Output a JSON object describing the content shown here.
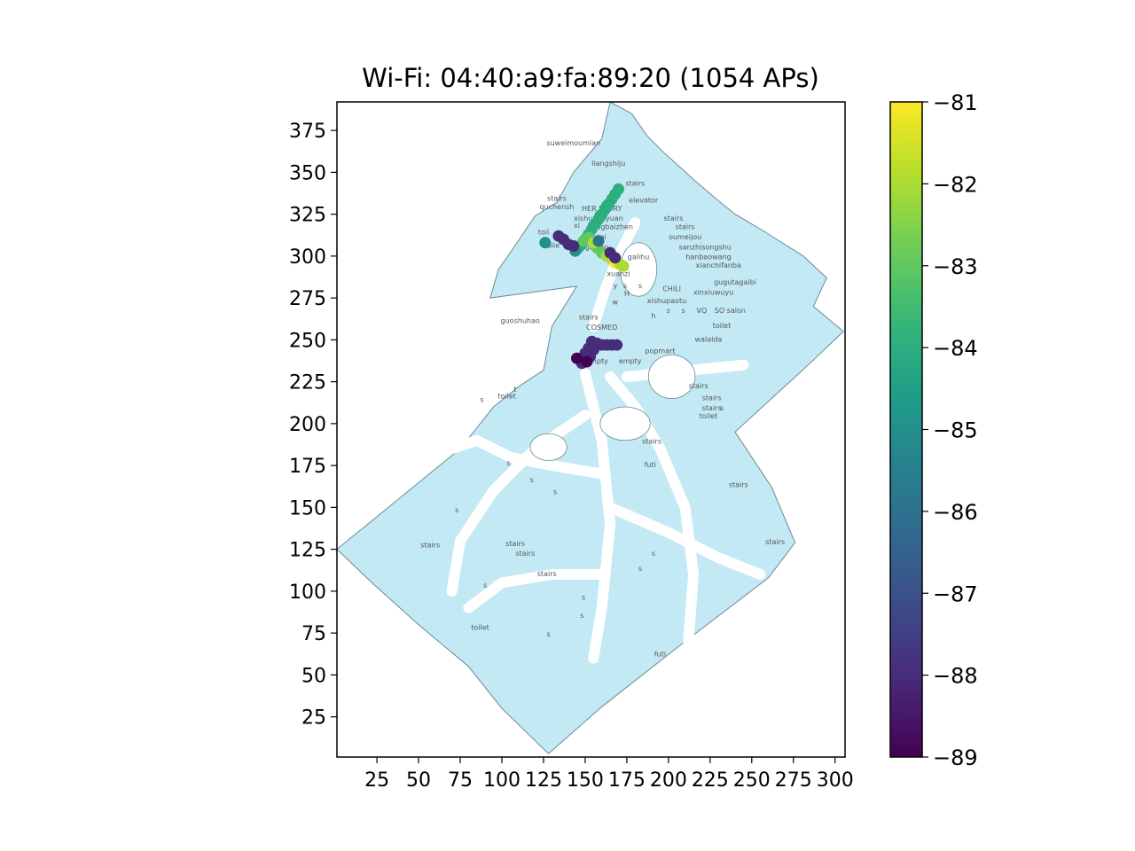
{
  "chart_data": {
    "type": "scatter",
    "title": "Wi-Fi: 04:40:a9:fa:89:20 (1054 APs)",
    "xlabel": "",
    "ylabel": "",
    "xlim": [
      1,
      306
    ],
    "ylim": [
      1,
      392
    ],
    "xticks": [
      25,
      50,
      75,
      100,
      125,
      150,
      175,
      200,
      225,
      250,
      275,
      300
    ],
    "yticks": [
      25,
      50,
      75,
      100,
      125,
      150,
      175,
      200,
      225,
      250,
      275,
      300,
      325,
      350,
      375
    ],
    "grid": false,
    "colorbar": {
      "colormap": "viridis",
      "range": [
        -89,
        -81
      ],
      "ticks": [
        -89,
        -88,
        -87,
        -86,
        -85,
        -84,
        -83,
        -82,
        -81
      ],
      "tick_labels": [
        "−89",
        "−88",
        "−87",
        "−86",
        "−85",
        "−84",
        "−83",
        "−82",
        "−81"
      ]
    },
    "background_map": {
      "floor_fill": "#c3e9f4",
      "outline_color": "#6a8a96",
      "outline": [
        [
          1,
          125
        ],
        [
          75,
          185
        ],
        [
          95,
          210
        ],
        [
          110,
          222
        ],
        [
          125,
          232
        ],
        [
          130,
          258
        ],
        [
          145,
          282
        ],
        [
          93,
          275
        ],
        [
          98,
          292
        ],
        [
          105,
          302
        ],
        [
          120,
          324
        ],
        [
          133,
          332
        ],
        [
          143,
          350
        ],
        [
          160,
          370
        ],
        [
          165,
          392
        ],
        [
          178,
          385
        ],
        [
          187,
          372
        ],
        [
          197,
          362
        ],
        [
          217,
          344
        ],
        [
          230,
          333
        ],
        [
          240,
          325
        ],
        [
          257,
          315
        ],
        [
          265,
          310
        ],
        [
          281,
          300
        ],
        [
          295,
          287
        ],
        [
          287,
          270
        ],
        [
          305,
          255
        ],
        [
          285,
          236
        ],
        [
          240,
          195
        ],
        [
          262,
          162
        ],
        [
          276,
          129
        ],
        [
          260,
          108
        ],
        [
          210,
          70
        ],
        [
          160,
          31
        ],
        [
          128,
          3
        ],
        [
          100,
          30
        ],
        [
          80,
          55
        ],
        [
          50,
          80
        ],
        [
          22,
          105
        ],
        [
          1,
          125
        ]
      ],
      "room_labels": [
        {
          "text": "suweimoumian",
          "x": 143,
          "y": 366
        },
        {
          "text": "liangshiju",
          "x": 164,
          "y": 354
        },
        {
          "text": "stairs",
          "x": 180,
          "y": 342
        },
        {
          "text": "stairs",
          "x": 133,
          "y": 333
        },
        {
          "text": "elevator",
          "x": 185,
          "y": 332
        },
        {
          "text": "quchensh",
          "x": 133,
          "y": 328
        },
        {
          "text": "HER STORY",
          "x": 160,
          "y": 327
        },
        {
          "text": "xishuoyuyuan",
          "x": 158,
          "y": 321
        },
        {
          "text": "stairs",
          "x": 203,
          "y": 321
        },
        {
          "text": "xi",
          "x": 145,
          "y": 317
        },
        {
          "text": "gangbaizhen",
          "x": 165,
          "y": 316
        },
        {
          "text": "stairs",
          "x": 210,
          "y": 316
        },
        {
          "text": "toil",
          "x": 125,
          "y": 313
        },
        {
          "text": "ongtai",
          "x": 156,
          "y": 310
        },
        {
          "text": "oumeijou",
          "x": 210,
          "y": 310
        },
        {
          "text": "toile",
          "x": 130,
          "y": 305
        },
        {
          "text": "guwen",
          "x": 157,
          "y": 304
        },
        {
          "text": "sanzhisongshu",
          "x": 222,
          "y": 304
        },
        {
          "text": "hanbaowang",
          "x": 224,
          "y": 298
        },
        {
          "text": "galihu",
          "x": 182,
          "y": 298
        },
        {
          "text": "xianchifanba",
          "x": 230,
          "y": 293
        },
        {
          "text": "xuanzi",
          "x": 170,
          "y": 288
        },
        {
          "text": "gugutagaibi",
          "x": 240,
          "y": 283
        },
        {
          "text": "y",
          "x": 168,
          "y": 281
        },
        {
          "text": "s",
          "x": 174,
          "y": 281
        },
        {
          "text": "s",
          "x": 183,
          "y": 281
        },
        {
          "text": "CHILI",
          "x": 202,
          "y": 279
        },
        {
          "text": "xinxiuwuyu",
          "x": 227,
          "y": 277
        },
        {
          "text": "H",
          "x": 175,
          "y": 276
        },
        {
          "text": "xishupaotu",
          "x": 199,
          "y": 272
        },
        {
          "text": "w",
          "x": 168,
          "y": 271
        },
        {
          "text": "s",
          "x": 200,
          "y": 266
        },
        {
          "text": "s",
          "x": 209,
          "y": 266
        },
        {
          "text": "VQ",
          "x": 220,
          "y": 266
        },
        {
          "text": "SO salon",
          "x": 237,
          "y": 266
        },
        {
          "text": "guoshuhao",
          "x": 111,
          "y": 260
        },
        {
          "text": "stairs",
          "x": 152,
          "y": 262
        },
        {
          "text": "h",
          "x": 191,
          "y": 263
        },
        {
          "text": "COSMED",
          "x": 160,
          "y": 256
        },
        {
          "text": "toilet",
          "x": 232,
          "y": 257
        },
        {
          "text": "walalda",
          "x": 224,
          "y": 249
        },
        {
          "text": "popmart",
          "x": 195,
          "y": 242
        },
        {
          "text": "empty",
          "x": 157,
          "y": 236
        },
        {
          "text": "empty",
          "x": 177,
          "y": 236
        },
        {
          "text": "stairs",
          "x": 218,
          "y": 221
        },
        {
          "text": "stairs",
          "x": 226,
          "y": 214
        },
        {
          "text": "toilet",
          "x": 103,
          "y": 215
        },
        {
          "text": "s",
          "x": 88,
          "y": 213
        },
        {
          "text": "t",
          "x": 108,
          "y": 219
        },
        {
          "text": "stairs",
          "x": 226,
          "y": 208
        },
        {
          "text": "toilet",
          "x": 224,
          "y": 203
        },
        {
          "text": "s",
          "x": 232,
          "y": 208
        },
        {
          "text": "stairs",
          "x": 190,
          "y": 188
        },
        {
          "text": "futi",
          "x": 189,
          "y": 174
        },
        {
          "text": "s",
          "x": 104,
          "y": 175
        },
        {
          "text": "s",
          "x": 118,
          "y": 165
        },
        {
          "text": "stairs",
          "x": 242,
          "y": 162
        },
        {
          "text": "s",
          "x": 132,
          "y": 158
        },
        {
          "text": "s",
          "x": 73,
          "y": 147
        },
        {
          "text": "stairs",
          "x": 108,
          "y": 127
        },
        {
          "text": "stairs",
          "x": 57,
          "y": 126
        },
        {
          "text": "stairs",
          "x": 114,
          "y": 121
        },
        {
          "text": "stairs",
          "x": 264,
          "y": 128
        },
        {
          "text": "s",
          "x": 191,
          "y": 121
        },
        {
          "text": "s",
          "x": 183,
          "y": 112
        },
        {
          "text": "stairs",
          "x": 127,
          "y": 109
        },
        {
          "text": "s",
          "x": 90,
          "y": 102
        },
        {
          "text": "s",
          "x": 149,
          "y": 95
        },
        {
          "text": "s",
          "x": 148,
          "y": 84
        },
        {
          "text": "toilet",
          "x": 87,
          "y": 77
        },
        {
          "text": "s",
          "x": 128,
          "y": 73
        },
        {
          "text": "futi",
          "x": 195,
          "y": 61
        }
      ]
    },
    "series": [
      {
        "points": [
          {
            "x": 170,
            "y": 340,
            "v": -84
          },
          {
            "x": 168,
            "y": 337,
            "v": -84
          },
          {
            "x": 166,
            "y": 334,
            "v": -84
          },
          {
            "x": 164,
            "y": 331,
            "v": -84
          },
          {
            "x": 162,
            "y": 328,
            "v": -84
          },
          {
            "x": 160,
            "y": 325,
            "v": -84
          },
          {
            "x": 158,
            "y": 322,
            "v": -84
          },
          {
            "x": 156,
            "y": 319,
            "v": -84
          },
          {
            "x": 154,
            "y": 316,
            "v": -84
          },
          {
            "x": 152,
            "y": 313,
            "v": -84
          },
          {
            "x": 150,
            "y": 310,
            "v": -84
          },
          {
            "x": 148,
            "y": 307,
            "v": -84
          },
          {
            "x": 146,
            "y": 305,
            "v": -84
          },
          {
            "x": 163,
            "y": 330,
            "v": -84
          },
          {
            "x": 159,
            "y": 324,
            "v": -84
          },
          {
            "x": 155,
            "y": 318,
            "v": -84
          },
          {
            "x": 152,
            "y": 311,
            "v": -83
          },
          {
            "x": 149,
            "y": 309,
            "v": -83
          },
          {
            "x": 157,
            "y": 305,
            "v": -83
          },
          {
            "x": 160,
            "y": 302,
            "v": -83
          },
          {
            "x": 163,
            "y": 300,
            "v": -82
          },
          {
            "x": 166,
            "y": 298,
            "v": -82
          },
          {
            "x": 168,
            "y": 296,
            "v": -81
          },
          {
            "x": 171,
            "y": 295,
            "v": -82
          },
          {
            "x": 173,
            "y": 294,
            "v": -82
          },
          {
            "x": 155,
            "y": 308,
            "v": -82
          },
          {
            "x": 126,
            "y": 308,
            "v": -85
          },
          {
            "x": 144,
            "y": 303,
            "v": -85
          },
          {
            "x": 158,
            "y": 309,
            "v": -86
          },
          {
            "x": 134,
            "y": 312,
            "v": -88
          },
          {
            "x": 137,
            "y": 310,
            "v": -88
          },
          {
            "x": 140,
            "y": 307,
            "v": -88
          },
          {
            "x": 143,
            "y": 306,
            "v": -88
          },
          {
            "x": 165,
            "y": 302,
            "v": -88
          },
          {
            "x": 168,
            "y": 299,
            "v": -88
          },
          {
            "x": 154,
            "y": 249,
            "v": -88
          },
          {
            "x": 157,
            "y": 248,
            "v": -88
          },
          {
            "x": 160,
            "y": 247,
            "v": -88
          },
          {
            "x": 163,
            "y": 247,
            "v": -88
          },
          {
            "x": 166,
            "y": 247,
            "v": -88
          },
          {
            "x": 169,
            "y": 247,
            "v": -88
          },
          {
            "x": 152,
            "y": 245,
            "v": -88
          },
          {
            "x": 150,
            "y": 242,
            "v": -88
          },
          {
            "x": 149,
            "y": 239,
            "v": -88
          },
          {
            "x": 148,
            "y": 236,
            "v": -88
          },
          {
            "x": 145,
            "y": 239,
            "v": -89
          },
          {
            "x": 155,
            "y": 244,
            "v": -88
          },
          {
            "x": 153,
            "y": 240,
            "v": -88
          },
          {
            "x": 151,
            "y": 237,
            "v": -89
          }
        ]
      }
    ]
  }
}
